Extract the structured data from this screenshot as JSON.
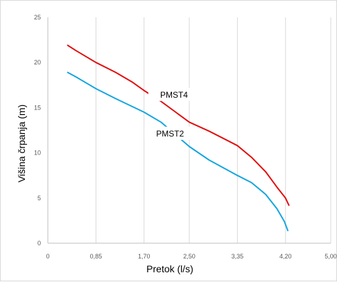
{
  "chart_data": {
    "type": "line",
    "title": "",
    "xlabel": "Pretok (l/s)",
    "ylabel": "Višina črpanja (m)",
    "xlim": [
      0,
      5.0
    ],
    "ylim": [
      0,
      25
    ],
    "x_ticks": [
      0,
      0.85,
      1.7,
      2.5,
      3.35,
      4.2,
      5.0
    ],
    "x_tick_labels": [
      "0",
      "0,85",
      "1,70",
      "2,50",
      "3,35",
      "4,20",
      "5,00"
    ],
    "y_ticks": [
      0,
      5,
      10,
      15,
      20,
      25
    ],
    "y_tick_labels": [
      "0",
      "5",
      "10",
      "15",
      "20",
      "25"
    ],
    "grid": {
      "vertical": true,
      "horizontal": false
    },
    "legend": "none (inline series labels)",
    "series": [
      {
        "name": "PMST4",
        "color": "#e01010",
        "label_at": [
          1.85,
          16.2
        ],
        "points": [
          [
            0.35,
            21.9
          ],
          [
            0.5,
            21.3
          ],
          [
            0.85,
            20.0
          ],
          [
            1.2,
            18.9
          ],
          [
            1.5,
            17.8
          ],
          [
            1.7,
            16.9
          ],
          [
            2.0,
            15.7
          ],
          [
            2.5,
            13.4
          ],
          [
            2.85,
            12.4
          ],
          [
            3.1,
            11.6
          ],
          [
            3.35,
            10.8
          ],
          [
            3.6,
            9.5
          ],
          [
            3.85,
            7.9
          ],
          [
            4.05,
            6.2
          ],
          [
            4.2,
            5.0
          ],
          [
            4.26,
            4.2
          ]
        ]
      },
      {
        "name": "PMST2",
        "color": "#14a5e0",
        "label_at": [
          1.78,
          11.9
        ],
        "points": [
          [
            0.35,
            18.9
          ],
          [
            0.5,
            18.4
          ],
          [
            0.85,
            17.1
          ],
          [
            1.2,
            16.0
          ],
          [
            1.7,
            14.5
          ],
          [
            2.0,
            13.4
          ],
          [
            2.5,
            10.7
          ],
          [
            2.85,
            9.2
          ],
          [
            3.35,
            7.5
          ],
          [
            3.6,
            6.7
          ],
          [
            3.85,
            5.4
          ],
          [
            4.05,
            3.8
          ],
          [
            4.18,
            2.4
          ],
          [
            4.24,
            1.4
          ]
        ]
      }
    ]
  }
}
